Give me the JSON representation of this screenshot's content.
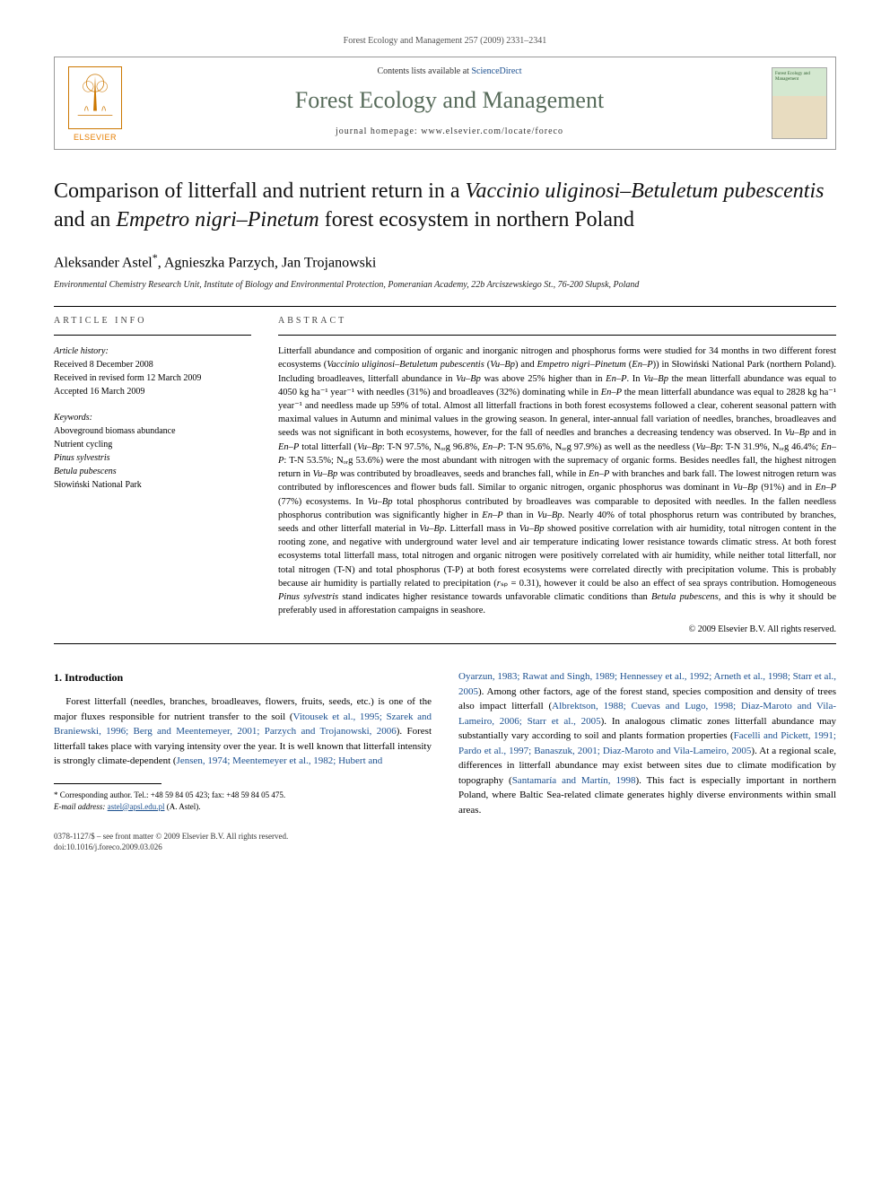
{
  "running_head": "Forest Ecology and Management 257 (2009) 2331–2341",
  "header": {
    "contents_prefix": "Contents lists available at ",
    "contents_link": "ScienceDirect",
    "journal": "Forest Ecology and Management",
    "homepage_prefix": "journal homepage: ",
    "homepage": "www.elsevier.com/locate/foreco",
    "publisher": "ELSEVIER",
    "cover_title": "Forest Ecology and Management"
  },
  "title_parts": {
    "p1": "Comparison of litterfall and nutrient return in a ",
    "i1": "Vaccinio uliginosi–Betuletum pubescentis",
    "p2": " and an ",
    "i2": "Empetro nigri–Pinetum",
    "p3": " forest ecosystem in northern Poland"
  },
  "authors": {
    "a1": "Aleksander Astel",
    "corr": "*",
    "a2": "Agnieszka Parzych",
    "a3": "Jan Trojanowski"
  },
  "affiliation": "Environmental Chemistry Research Unit, Institute of Biology and Environmental Protection, Pomeranian Academy, 22b Arciszewskiego St., 76-200 Słupsk, Poland",
  "article_info": {
    "label": "ARTICLE INFO",
    "history_hd": "Article history:",
    "received": "Received 8 December 2008",
    "revised": "Received in revised form 12 March 2009",
    "accepted": "Accepted 16 March 2009",
    "keywords_hd": "Keywords:",
    "k1": "Aboveground biomass abundance",
    "k2": "Nutrient cycling",
    "k3": "Pinus sylvestris",
    "k4": "Betula pubescens",
    "k5": "Słowiński National Park"
  },
  "abstract": {
    "label": "ABSTRACT",
    "text_segments": [
      {
        "t": "Litterfall abundance and composition of organic and inorganic nitrogen and phosphorus forms were studied for 34 months in two different forest ecosystems (",
        "i": false
      },
      {
        "t": "Vaccinio uliginosi–Betuletum pubescentis",
        "i": true
      },
      {
        "t": " (",
        "i": false
      },
      {
        "t": "Vu–Bp",
        "i": true
      },
      {
        "t": ") and ",
        "i": false
      },
      {
        "t": "Empetro nigri–Pinetum",
        "i": true
      },
      {
        "t": " (",
        "i": false
      },
      {
        "t": "En–P",
        "i": true
      },
      {
        "t": ")) in Słowiński National Park (northern Poland). Including broadleaves, litterfall abundance in ",
        "i": false
      },
      {
        "t": "Vu–Bp",
        "i": true
      },
      {
        "t": " was above 25% higher than in ",
        "i": false
      },
      {
        "t": "En–P",
        "i": true
      },
      {
        "t": ". In ",
        "i": false
      },
      {
        "t": "Vu–Bp",
        "i": true
      },
      {
        "t": " the mean litterfall abundance was equal to 4050 kg ha⁻¹ year⁻¹ with needles (31%) and broadleaves (32%) dominating while in ",
        "i": false
      },
      {
        "t": "En–P",
        "i": true
      },
      {
        "t": " the mean litterfall abundance was equal to 2828 kg ha⁻¹ year⁻¹ and needless made up 59% of total. Almost all litterfall fractions in both forest ecosystems followed a clear, coherent seasonal pattern with maximal values in Autumn and minimal values in the growing season. In general, inter-annual fall variation of needles, branches, broadleaves and seeds was not significant in both ecosystems, however, for the fall of needles and branches a decreasing tendency was observed. In ",
        "i": false
      },
      {
        "t": "Vu–Bp",
        "i": true
      },
      {
        "t": " and in ",
        "i": false
      },
      {
        "t": "En–P",
        "i": true
      },
      {
        "t": " total litterfall (",
        "i": false
      },
      {
        "t": "Vu–Bp",
        "i": true
      },
      {
        "t": ": T-N 97.5%, Nₒᵣg 96.8%, ",
        "i": false
      },
      {
        "t": "En–P",
        "i": true
      },
      {
        "t": ": T-N 95.6%, Nₒᵣg 97.9%) as well as the needless (",
        "i": false
      },
      {
        "t": "Vu–Bp",
        "i": true
      },
      {
        "t": ": T-N 31.9%, Nₒᵣg 46.4%; ",
        "i": false
      },
      {
        "t": "En–P",
        "i": true
      },
      {
        "t": ": T-N 53.5%; Nₒᵣg 53.6%) were the most abundant with nitrogen with the supremacy of organic forms. Besides needles fall, the highest nitrogen return in ",
        "i": false
      },
      {
        "t": "Vu–Bp",
        "i": true
      },
      {
        "t": " was contributed by broadleaves, seeds and branches fall, while in ",
        "i": false
      },
      {
        "t": "En–P",
        "i": true
      },
      {
        "t": " with branches and bark fall. The lowest nitrogen return was contributed by inflorescences and flower buds fall. Similar to organic nitrogen, organic phosphorus was dominant in ",
        "i": false
      },
      {
        "t": "Vu–Bp",
        "i": true
      },
      {
        "t": " (91%) and in ",
        "i": false
      },
      {
        "t": "En–P",
        "i": true
      },
      {
        "t": " (77%) ecosystems. In ",
        "i": false
      },
      {
        "t": "Vu–Bp",
        "i": true
      },
      {
        "t": " total phosphorus contributed by broadleaves was comparable to deposited with needles. In the fallen needless phosphorus contribution was significantly higher in ",
        "i": false
      },
      {
        "t": "En–P",
        "i": true
      },
      {
        "t": " than in ",
        "i": false
      },
      {
        "t": "Vu–Bp",
        "i": true
      },
      {
        "t": ". Nearly 40% of total phosphorus return was contributed by branches, seeds and other litterfall material in ",
        "i": false
      },
      {
        "t": "Vu–Bp",
        "i": true
      },
      {
        "t": ". Litterfall mass in ",
        "i": false
      },
      {
        "t": "Vu–Bp",
        "i": true
      },
      {
        "t": " showed positive correlation with air humidity, total nitrogen content in the rooting zone, and negative with underground water level and air temperature indicating lower resistance towards climatic stress. At both forest ecosystems total litterfall mass, total nitrogen and organic nitrogen were positively correlated with air humidity, while neither total litterfall, nor total nitrogen (T-N) and total phosphorus (T-P) at both forest ecosystems were correlated directly with precipitation volume. This is probably because air humidity is partially related to precipitation (",
        "i": false
      },
      {
        "t": "r",
        "i": true
      },
      {
        "t": "ₛₚ = 0.31), however it could be also an effect of sea sprays contribution. Homogeneous ",
        "i": false
      },
      {
        "t": "Pinus sylvestris",
        "i": true
      },
      {
        "t": " stand indicates higher resistance towards unfavorable climatic conditions than ",
        "i": false
      },
      {
        "t": "Betula pubescens",
        "i": true
      },
      {
        "t": ", and this is why it should be preferably used in afforestation campaigns in seashore.",
        "i": false
      }
    ],
    "copyright": "© 2009 Elsevier B.V. All rights reserved."
  },
  "body": {
    "section_heading": "1. Introduction",
    "left_segments": [
      {
        "t": "Forest litterfall (needles, branches, broadleaves, flowers, fruits, seeds, etc.) is one of the major fluxes responsible for nutrient transfer to the soil (",
        "link": false
      },
      {
        "t": "Vitousek et al., 1995; Szarek and Braniewski, 1996; Berg and Meentemeyer, 2001; Parzych and Trojanowski, 2006",
        "link": true
      },
      {
        "t": "). Forest litterfall takes place with varying intensity over the year. It is well known that litterfall intensity is strongly climate-dependent (",
        "link": false
      },
      {
        "t": "Jensen, 1974; Meentemeyer et al., 1982; Hubert and",
        "link": true
      }
    ],
    "right_segments": [
      {
        "t": "Oyarzun, 1983; Rawat and Singh, 1989; Hennessey et al., 1992; Arneth et al., 1998; Starr et al., 2005",
        "link": true
      },
      {
        "t": "). Among other factors, age of the forest stand, species composition and density of trees also impact litterfall (",
        "link": false
      },
      {
        "t": "Albrektson, 1988; Cuevas and Lugo, 1998; Diaz-Maroto and Vila-Lameiro, 2006; Starr et al., 2005",
        "link": true
      },
      {
        "t": "). In analogous climatic zones litterfall abundance may substantially vary according to soil and plants formation properties (",
        "link": false
      },
      {
        "t": "Facelli and Pickett, 1991; Pardo et al., 1997; Banaszuk, 2001; Diaz-Maroto and Vila-Lameiro, 2005",
        "link": true
      },
      {
        "t": "). At a regional scale, differences in litterfall abundance may exist between sites due to climate modification by topography (",
        "link": false
      },
      {
        "t": "Santamaría and Martín, 1998",
        "link": true
      },
      {
        "t": "). This fact is especially important in northern Poland, where Baltic Sea-related climate generates highly diverse environments within small areas.",
        "link": false
      }
    ]
  },
  "footnote": {
    "corr_label": "* Corresponding author. Tel.: +48 59 84 05 423; fax: +48 59 84 05 475.",
    "email_label": "E-mail address: ",
    "email": "astel@apsl.edu.pl",
    "email_suffix": " (A. Astel)."
  },
  "bottom": {
    "line1": "0378-1127/$ – see front matter © 2009 Elsevier B.V. All rights reserved.",
    "line2": "doi:10.1016/j.foreco.2009.03.026"
  },
  "colors": {
    "link": "#1a4f8f",
    "journal_title": "#576b5a",
    "elsevier_orange": "#e67e00"
  }
}
